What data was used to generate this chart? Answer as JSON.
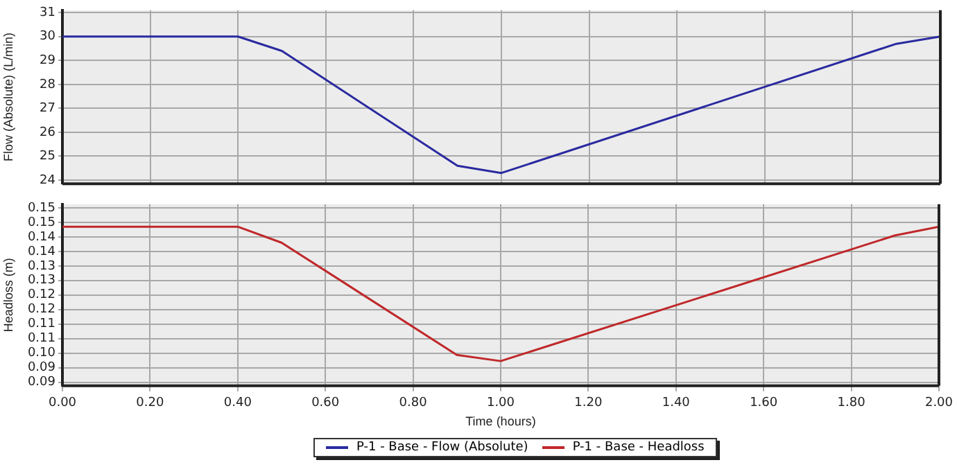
{
  "chart_data": [
    {
      "type": "line",
      "ylabel": "Flow (Absolute) (L/min)",
      "x": [
        0,
        0.4,
        0.5,
        0.9,
        1.0,
        1.9,
        2.0
      ],
      "series": [
        {
          "name": "P-1 - Base - Flow (Absolute)",
          "color": "#2a2aa0",
          "values": [
            30,
            30,
            29.4,
            24.6,
            24.3,
            29.7,
            30
          ]
        }
      ],
      "xlim": [
        0,
        2
      ],
      "xticks": [
        0,
        0.2,
        0.4,
        0.6,
        0.8,
        1.0,
        1.2,
        1.4,
        1.6,
        1.8,
        2.0
      ],
      "ylim": [
        23.85,
        31.1
      ],
      "yticks": [
        24,
        25,
        26,
        27,
        28,
        29,
        30,
        31
      ],
      "grid": true,
      "legend": "bottom",
      "tick_labels": "y"
    },
    {
      "type": "line",
      "xlabel": "Time (hours)",
      "ylabel": "Headloss (m)",
      "x": [
        0,
        0.4,
        0.5,
        0.9,
        1.0,
        1.9,
        2.0
      ],
      "series": [
        {
          "name": "P-1 - Base - Headloss",
          "color": "#c0282a",
          "values": [
            0.1435,
            0.1435,
            0.138,
            0.0994,
            0.0973,
            0.1405,
            0.1435
          ]
        }
      ],
      "xlim": [
        0,
        2
      ],
      "xticks": [
        {
          "value": 0,
          "label": "0.00"
        },
        {
          "value": 0.2,
          "label": "0.20"
        },
        {
          "value": 0.4,
          "label": "0.40"
        },
        {
          "value": 0.6,
          "label": "0.60"
        },
        {
          "value": 0.8,
          "label": "0.80"
        },
        {
          "value": 1.0,
          "label": "1.00"
        },
        {
          "value": 1.2,
          "label": "1.20"
        },
        {
          "value": 1.4,
          "label": "1.40"
        },
        {
          "value": 1.6,
          "label": "1.60"
        },
        {
          "value": 1.8,
          "label": "1.80"
        },
        {
          "value": 2.0,
          "label": "2.00"
        }
      ],
      "ylim": [
        0.0888,
        0.1512
      ],
      "yticks": [
        {
          "value": 0.09,
          "label": "0.09"
        },
        {
          "value": 0.095,
          "label": "0.09"
        },
        {
          "value": 0.1,
          "label": "0.10"
        },
        {
          "value": 0.105,
          "label": "0.11"
        },
        {
          "value": 0.11,
          "label": "0.11"
        },
        {
          "value": 0.115,
          "label": "0.12"
        },
        {
          "value": 0.12,
          "label": "0.12"
        },
        {
          "value": 0.125,
          "label": "0.13"
        },
        {
          "value": 0.13,
          "label": "0.13"
        },
        {
          "value": 0.135,
          "label": "0.14"
        },
        {
          "value": 0.14,
          "label": "0.14"
        },
        {
          "value": 0.145,
          "label": "0.15"
        },
        {
          "value": 0.15,
          "label": "0.15"
        }
      ],
      "grid": true,
      "legend": "bottom"
    }
  ]
}
